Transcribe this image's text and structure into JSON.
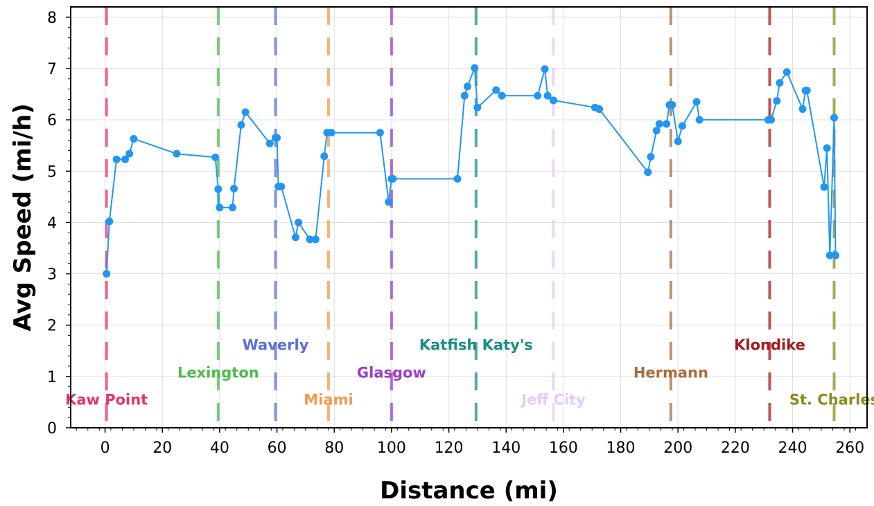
{
  "chart_data": {
    "type": "line",
    "title": "",
    "xlabel": "Distance (mi)",
    "ylabel": "Avg Speed (mi/h)",
    "xlim": [
      -12,
      266
    ],
    "ylim": [
      0,
      8.2
    ],
    "xticks": [
      0,
      20,
      40,
      60,
      80,
      100,
      120,
      140,
      160,
      180,
      200,
      220,
      240,
      260
    ],
    "yticks": [
      0,
      1,
      2,
      3,
      4,
      5,
      6,
      7,
      8
    ],
    "grid": true,
    "series": [
      {
        "color": "#2196f3",
        "points": [
          [
            0.5,
            3.0
          ],
          [
            1.5,
            4.02
          ],
          [
            4,
            5.23
          ],
          [
            7,
            5.23
          ],
          [
            8.5,
            5.34
          ],
          [
            10,
            5.63
          ],
          [
            25,
            5.34
          ],
          [
            38.5,
            5.27
          ],
          [
            39.5,
            4.65
          ],
          [
            40,
            4.29
          ],
          [
            44.5,
            4.29
          ],
          [
            45,
            4.66
          ],
          [
            47.5,
            5.9
          ],
          [
            49,
            6.15
          ],
          [
            57.5,
            5.54
          ],
          [
            59.5,
            5.65
          ],
          [
            60,
            5.65
          ],
          [
            60.5,
            4.7
          ],
          [
            61.5,
            4.7
          ],
          [
            66.5,
            3.71
          ],
          [
            67.5,
            4.0
          ],
          [
            71.5,
            3.67
          ],
          [
            73.5,
            3.67
          ],
          [
            76.5,
            5.29
          ],
          [
            77.5,
            5.75
          ],
          [
            79,
            5.75
          ],
          [
            96,
            5.75
          ],
          [
            99,
            4.4
          ],
          [
            100,
            4.85
          ],
          [
            100.5,
            4.85
          ],
          [
            123,
            4.85
          ],
          [
            125.5,
            6.47
          ],
          [
            126.5,
            6.65
          ],
          [
            129,
            7.01
          ],
          [
            130,
            6.24
          ],
          [
            136.5,
            6.58
          ],
          [
            138.5,
            6.47
          ],
          [
            151,
            6.47
          ],
          [
            153.5,
            6.99
          ],
          [
            154.5,
            6.47
          ],
          [
            156.5,
            6.38
          ],
          [
            171,
            6.24
          ],
          [
            172.5,
            6.21
          ],
          [
            189.5,
            4.98
          ],
          [
            190.5,
            5.28
          ],
          [
            192.5,
            5.79
          ],
          [
            193.5,
            5.92
          ],
          [
            196,
            5.92
          ],
          [
            197,
            6.29
          ],
          [
            198,
            6.29
          ],
          [
            200,
            5.58
          ],
          [
            201.5,
            5.88
          ],
          [
            206.5,
            6.35
          ],
          [
            207.5,
            6.0
          ],
          [
            231.5,
            6.0
          ],
          [
            232.5,
            6.0
          ],
          [
            234.5,
            6.37
          ],
          [
            235.5,
            6.72
          ],
          [
            238,
            6.93
          ],
          [
            243.5,
            6.21
          ],
          [
            244.5,
            6.57
          ],
          [
            245,
            6.57
          ],
          [
            251,
            4.69
          ],
          [
            252,
            5.45
          ],
          [
            253,
            3.36
          ],
          [
            254.5,
            6.04
          ],
          [
            255,
            3.36
          ]
        ]
      }
    ],
    "markers": [
      {
        "name": "Kaw Point",
        "x": 0.5,
        "color": "#e8336d",
        "label_y": 0.45
      },
      {
        "name": "Lexington",
        "x": 39.5,
        "color": "#4cbb4c",
        "label_y": 0.98
      },
      {
        "name": "Waverly",
        "x": 59.5,
        "color": "#5c6fd6",
        "label_y": 1.52
      },
      {
        "name": "Miami",
        "x": 78,
        "color": "#f59a4e",
        "label_y": 0.45
      },
      {
        "name": "Glasgow",
        "x": 100,
        "color": "#9b3fc7",
        "label_y": 0.98
      },
      {
        "name": "Katfish Katy's",
        "x": 129.5,
        "color": "#168e86",
        "label_y": 1.52
      },
      {
        "name": "Jeff City",
        "x": 156.5,
        "color": "#e6c9f8",
        "label_y": 0.45
      },
      {
        "name": "Hermann",
        "x": 197.5,
        "color": "#a86e3c",
        "label_y": 0.98
      },
      {
        "name": "Klondike",
        "x": 232,
        "color": "#a51a1a",
        "label_y": 1.52
      },
      {
        "name": "St. Charles",
        "x": 254.5,
        "color": "#8c8c1c",
        "label_y": 0.45
      }
    ]
  }
}
